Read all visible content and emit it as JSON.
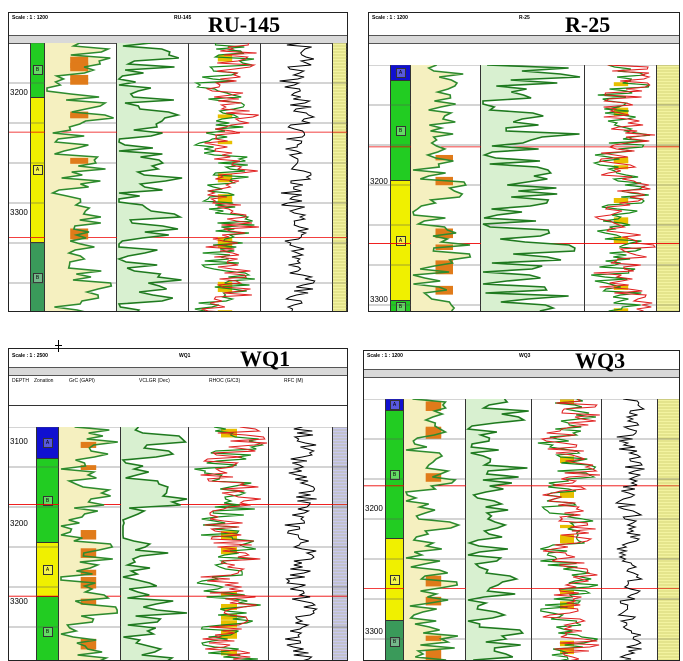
{
  "panels": [
    {
      "id": "ru145",
      "title": "RU-145",
      "scale": "Scale : 1 : 1200",
      "small_title": "RU-145",
      "depth_ticks": [
        "3200",
        "3300"
      ],
      "zones": [
        "B",
        "A",
        "B"
      ]
    },
    {
      "id": "r25",
      "title": "R-25",
      "scale": "Scale : 1 : 1200",
      "small_title": "R-25",
      "depth_ticks": [
        "3200",
        "3300"
      ],
      "zones": [
        "A",
        "B",
        "A",
        "B"
      ]
    },
    {
      "id": "wq1",
      "title": "WQ1",
      "scale": "Scale : 1 : 2500",
      "small_title": "WQ1",
      "depth_ticks": [
        "3100",
        "3200",
        "3300"
      ],
      "zones": [
        "A",
        "B",
        "A",
        "B"
      ],
      "col_headers": [
        "DEPTH",
        "Zonation",
        "GrC (GAPI)",
        "VCLGR (Dec)",
        "RHOC (G/C3)",
        "RFC (M)"
      ]
    },
    {
      "id": "wq3",
      "title": "WQ3",
      "scale": "Scale : 1 : 1200",
      "small_title": "WQ3",
      "depth_ticks": [
        "3200",
        "3300"
      ],
      "zones": [
        "A",
        "B",
        "A",
        "B"
      ]
    }
  ],
  "colors": {
    "gamma": "#2e8b2e",
    "gamma_fill": "#f5f0c0",
    "sand_fill": "#e07b1a",
    "vclay": "#1f7a1f",
    "vclay_fill": "#d8f0d0",
    "density": "#e02020",
    "neutron": "#1a8a1a",
    "crossover": "#e8c000",
    "zone_blue": "#1010d0",
    "zone_green": "#22cc22",
    "zone_yellow": "#f0f000",
    "zone_dkgreen": "#3a9a5a"
  }
}
